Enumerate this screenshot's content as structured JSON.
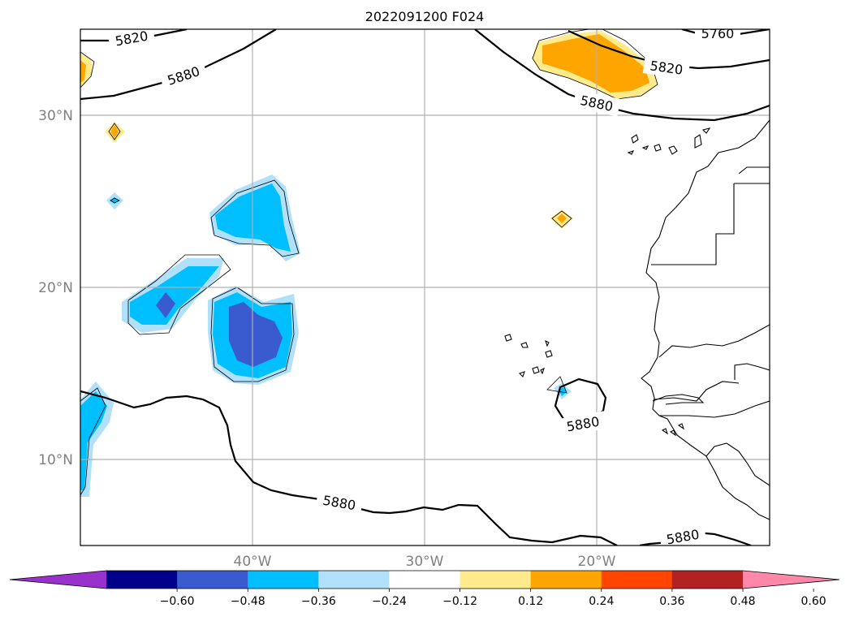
{
  "title": "2022091200 F024",
  "lat_labels": [
    "30°N",
    "20°N",
    "10°N"
  ],
  "lon_labels": [
    "40°W",
    "30°W",
    "20°W"
  ],
  "contour_labels": [
    "5820",
    "5880",
    "5820",
    "5760",
    "5880",
    "5880",
    "5880",
    "5880"
  ],
  "colorbar": {
    "ticks": [
      "−0.60",
      "−0.48",
      "−0.36",
      "−0.24",
      "−0.12",
      "0.12",
      "0.24",
      "0.36",
      "0.48",
      "0.60"
    ],
    "colors": [
      "#9932cc",
      "#00008b",
      "#3a5bd0",
      "#00bfff",
      "#b0e0fa",
      "#ffffff",
      "#ffeb8c",
      "#ffa500",
      "#ff4500",
      "#b22222",
      "#ff88aa"
    ]
  },
  "map": {
    "lon_range": [
      -50,
      -10
    ],
    "lat_range": [
      5,
      35
    ]
  }
}
